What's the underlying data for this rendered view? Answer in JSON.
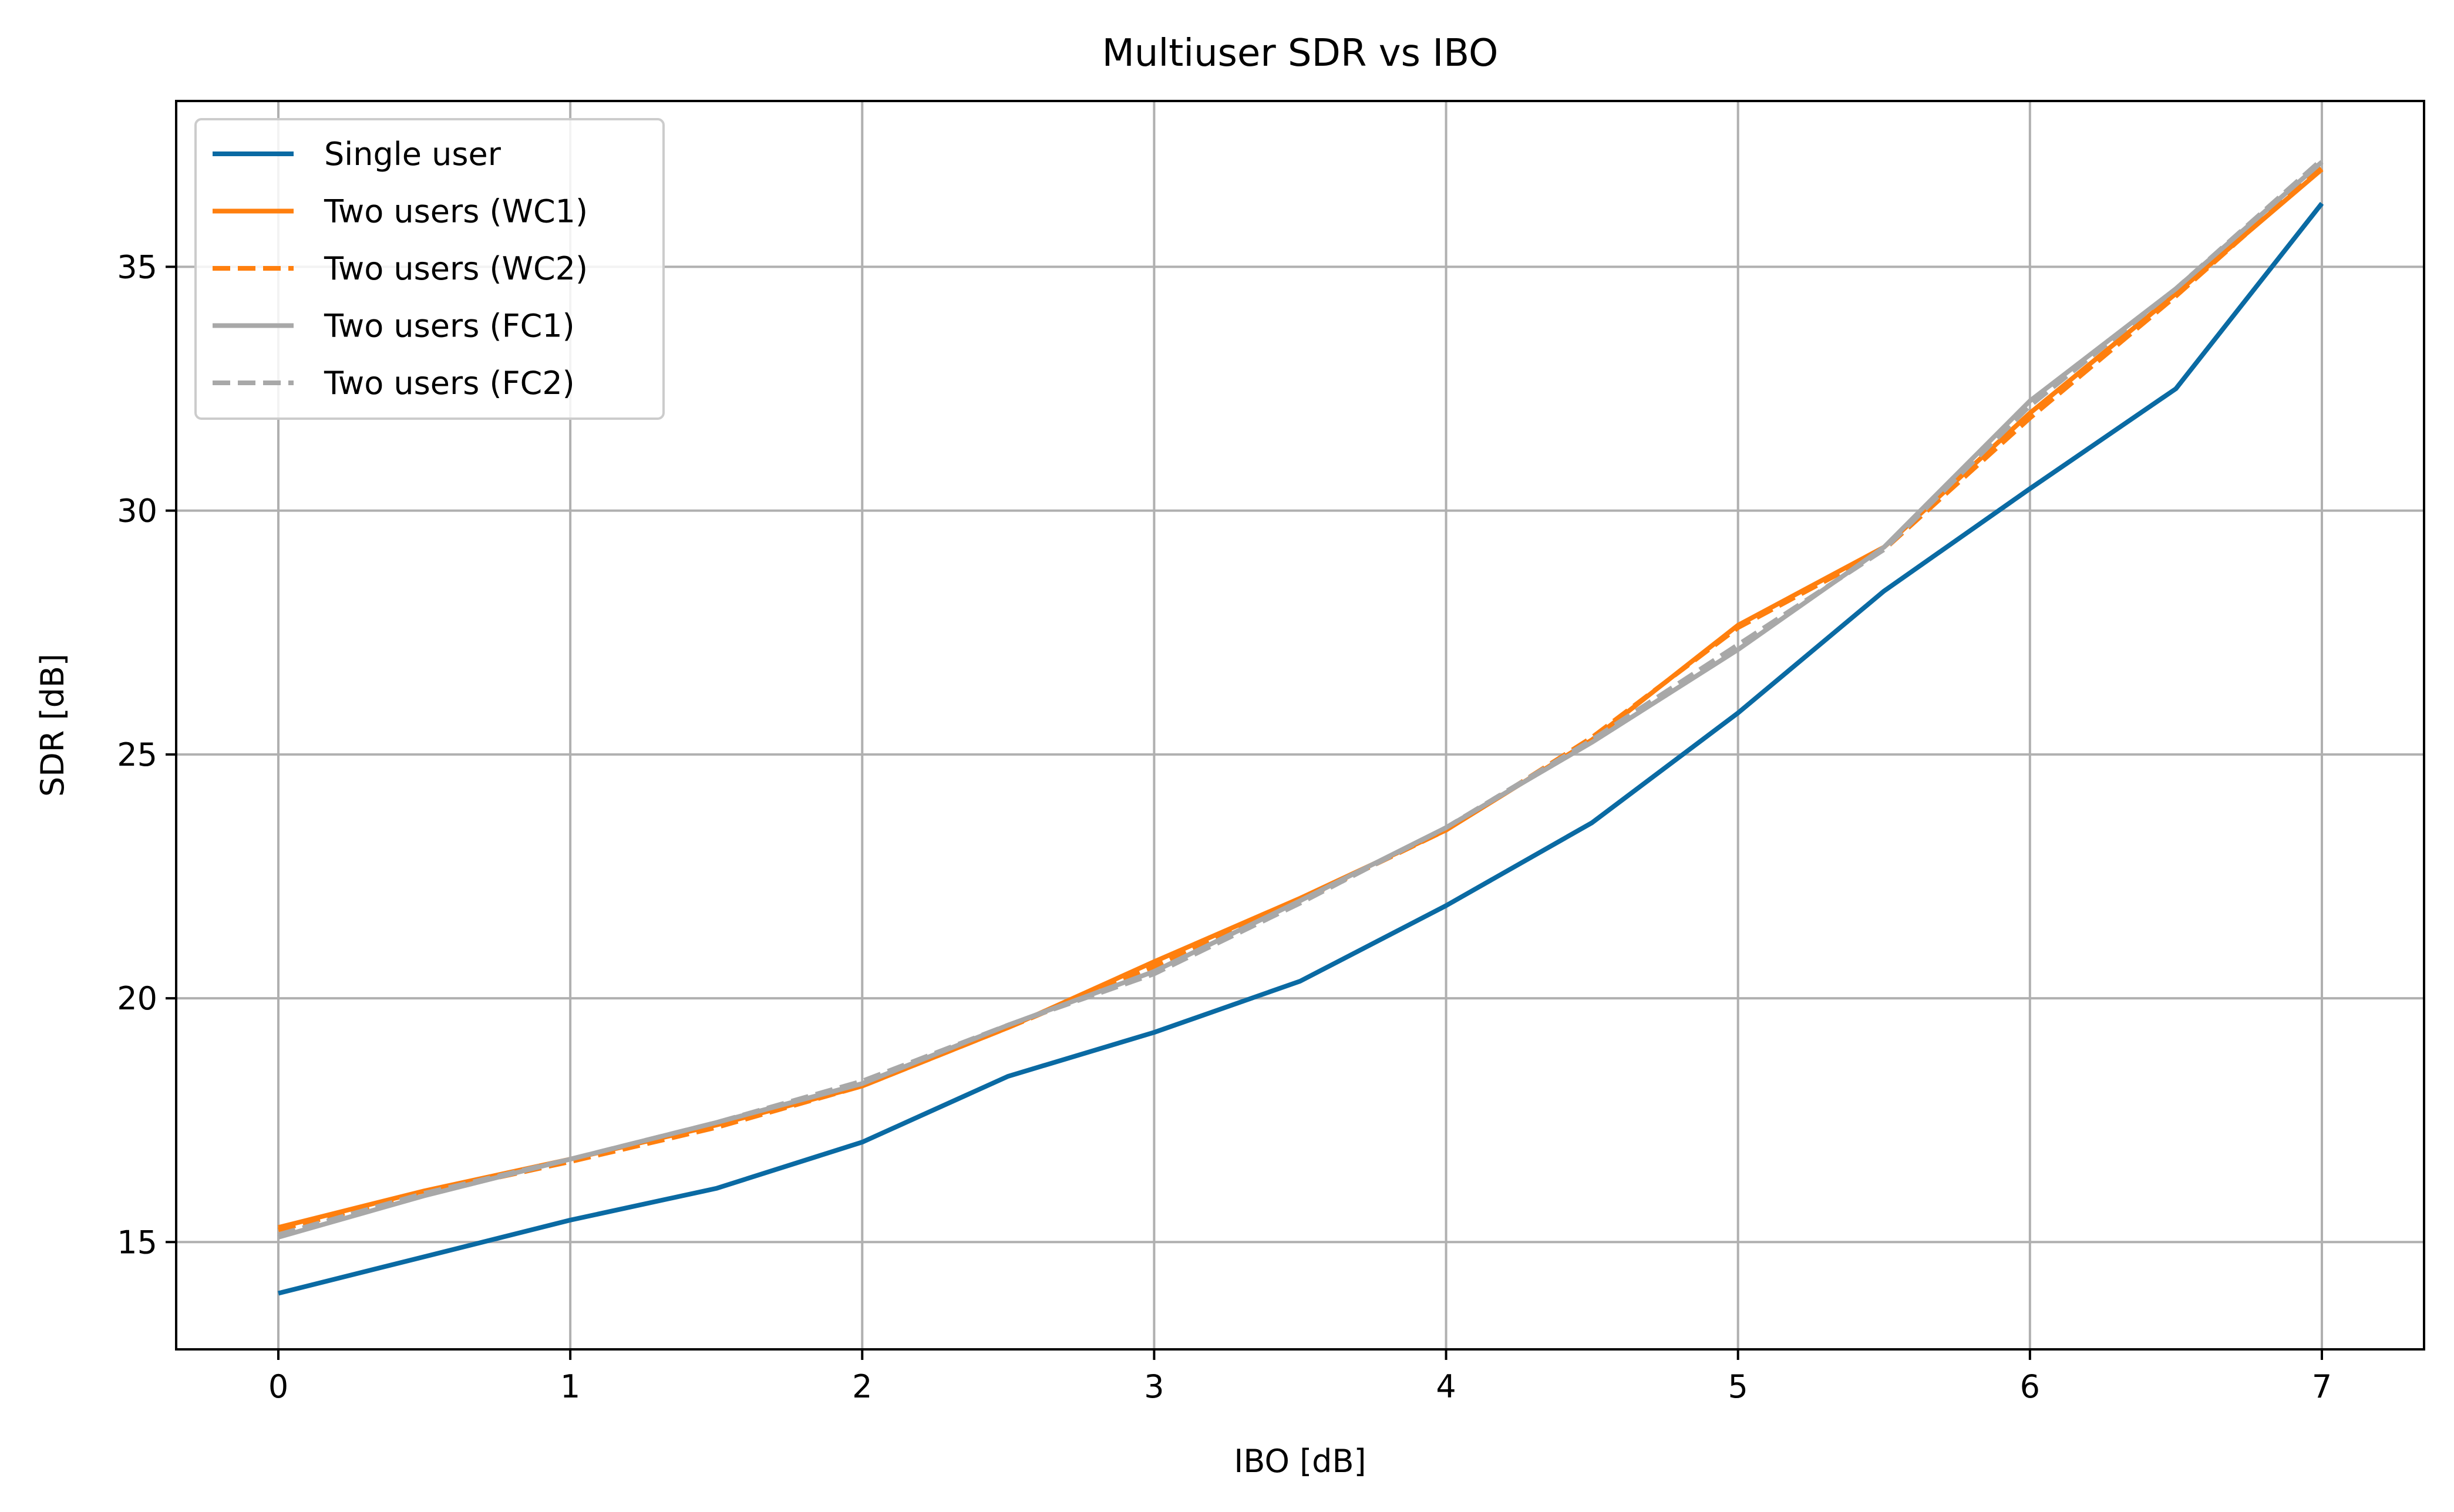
{
  "chart_data": {
    "type": "line",
    "title": "Multiuser SDR vs IBO",
    "xlabel": "IBO [dB]",
    "ylabel": "SDR [dB]",
    "xlim": [
      -0.35,
      7.35
    ],
    "ylim": [
      12.8,
      38.4
    ],
    "xticks": [
      0,
      1,
      2,
      3,
      4,
      5,
      6,
      7
    ],
    "yticks": [
      15,
      20,
      25,
      30,
      35
    ],
    "grid": true,
    "legend_position": "upper-left",
    "x": [
      0,
      0.5,
      1,
      1.5,
      2,
      2.5,
      3,
      3.5,
      4,
      4.5,
      5,
      5.5,
      6,
      6.5,
      7
    ],
    "series": [
      {
        "name": "Single user",
        "color": "#0a6aa3",
        "dash": "solid",
        "values": [
          13.95,
          14.7,
          15.45,
          16.1,
          17.05,
          18.4,
          19.3,
          20.35,
          21.9,
          23.6,
          25.85,
          28.35,
          30.45,
          32.5,
          36.3
        ]
      },
      {
        "name": "Two users (WC1)",
        "color": "#ff7f0e",
        "dash": "solid",
        "values": [
          15.3,
          16.05,
          16.7,
          17.4,
          18.2,
          19.4,
          20.75,
          22.05,
          23.45,
          25.3,
          27.65,
          29.25,
          32.0,
          34.45,
          37.0
        ]
      },
      {
        "name": "Two users (WC2)",
        "color": "#ff7f0e",
        "dash": "dashed",
        "values": [
          15.25,
          16.0,
          16.65,
          17.35,
          18.2,
          19.4,
          20.65,
          22.0,
          23.45,
          25.35,
          27.6,
          29.2,
          31.9,
          34.4,
          37.05
        ]
      },
      {
        "name": "Two users (FC1)",
        "color": "#a8a8a8",
        "dash": "solid",
        "values": [
          15.1,
          15.95,
          16.7,
          17.45,
          18.25,
          19.45,
          20.55,
          22.0,
          23.5,
          25.25,
          27.15,
          29.25,
          32.25,
          34.55,
          37.15
        ]
      },
      {
        "name": "Two users (FC2)",
        "color": "#a8a8a8",
        "dash": "dashed",
        "values": [
          15.15,
          16.0,
          16.7,
          17.45,
          18.3,
          19.45,
          20.5,
          21.95,
          23.5,
          25.3,
          27.25,
          29.2,
          32.15,
          34.55,
          37.2
        ]
      }
    ]
  }
}
